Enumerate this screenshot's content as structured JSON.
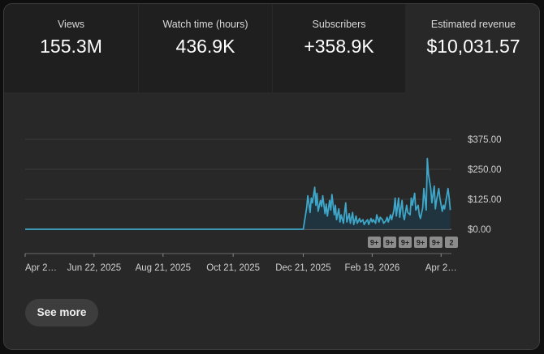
{
  "metrics": [
    {
      "label": "Views",
      "value": "155.3M"
    },
    {
      "label": "Watch time (hours)",
      "value": "436.9K"
    },
    {
      "label": "Subscribers",
      "value": "+358.9K"
    },
    {
      "label": "Estimated revenue",
      "value": "$10,031.57"
    }
  ],
  "selected_metric": "Estimated revenue",
  "see_more_label": "See more",
  "colors": {
    "line": "#3ea6c8",
    "fill": "#1e3540",
    "badge": "#8c8c8c",
    "selected_tab_bg": "#282828",
    "tab_bg": "#1f1f1f"
  },
  "chart_data": {
    "type": "area",
    "ylim": [
      0,
      375
    ],
    "y_tick_labels": [
      "$375.00",
      "$250.00",
      "$125.00",
      "$0.00"
    ],
    "y_tick_values": [
      375,
      250,
      125,
      0
    ],
    "x_tick_labels": [
      "Apr 2…",
      "Jun 22, 2025",
      "Aug 21, 2025",
      "Oct 21, 2025",
      "Dec 21, 2025",
      "Feb 19, 2026",
      "Apr 2…"
    ],
    "x_tick_dates": [
      "2025-04-23",
      "2025-06-22",
      "2025-08-21",
      "2025-10-21",
      "2025-12-21",
      "2026-02-19",
      "2026-04-20"
    ],
    "x_range": [
      "2025-04-23",
      "2026-04-29"
    ],
    "annotation_badges": [
      "9+",
      "9+",
      "9+",
      "9+",
      "9+",
      "2"
    ],
    "series": [
      {
        "x": [
          "2025-04-23",
          "2025-12-21",
          "2025-12-24",
          "2025-12-25",
          "2025-12-27",
          "2025-12-28",
          "2025-12-29",
          "2025-12-31",
          "2026-01-01",
          "2026-01-02",
          "2026-01-03",
          "2026-01-05",
          "2026-01-06",
          "2026-01-07",
          "2026-01-09",
          "2026-01-10",
          "2026-01-11",
          "2026-01-13",
          "2026-01-14",
          "2026-01-15",
          "2026-01-17",
          "2026-01-18",
          "2026-01-19",
          "2026-01-21",
          "2026-01-22",
          "2026-01-23",
          "2026-01-25",
          "2026-01-26",
          "2026-01-27",
          "2026-01-28",
          "2026-01-30",
          "2026-01-31",
          "2026-02-02",
          "2026-02-03",
          "2026-02-05",
          "2026-02-06",
          "2026-02-08",
          "2026-02-09",
          "2026-02-11",
          "2026-02-12",
          "2026-02-14",
          "2026-02-15",
          "2026-02-16",
          "2026-02-18",
          "2026-02-19",
          "2026-02-20",
          "2026-02-22",
          "2026-02-23",
          "2026-02-25",
          "2026-02-26",
          "2026-02-28",
          "2026-03-01",
          "2026-03-03",
          "2026-03-04",
          "2026-03-05",
          "2026-03-07",
          "2026-03-08",
          "2026-03-10",
          "2026-03-11",
          "2026-03-12",
          "2026-03-14",
          "2026-03-15",
          "2026-03-17",
          "2026-03-18",
          "2026-03-19",
          "2026-03-21",
          "2026-03-22",
          "2026-03-24",
          "2026-03-25",
          "2026-03-26",
          "2026-03-28",
          "2026-03-29",
          "2026-03-31",
          "2026-04-01",
          "2026-04-02",
          "2026-04-04",
          "2026-04-05",
          "2026-04-07",
          "2026-04-08",
          "2026-04-09",
          "2026-04-11",
          "2026-04-12",
          "2026-04-14",
          "2026-04-15",
          "2026-04-16",
          "2026-04-18",
          "2026-04-19",
          "2026-04-21",
          "2026-04-22",
          "2026-04-23",
          "2026-04-25",
          "2026-04-26",
          "2026-04-27",
          "2026-04-28"
        ],
        "y": [
          0,
          0,
          90,
          140,
          70,
          130,
          110,
          175,
          100,
          150,
          75,
          120,
          95,
          140,
          65,
          105,
          55,
          120,
          80,
          145,
          60,
          100,
          40,
          85,
          30,
          60,
          25,
          70,
          110,
          30,
          65,
          25,
          70,
          20,
          55,
          25,
          45,
          30,
          40,
          20,
          35,
          40,
          20,
          45,
          30,
          40,
          25,
          60,
          30,
          50,
          40,
          25,
          35,
          50,
          30,
          60,
          40,
          80,
          130,
          55,
          130,
          50,
          120,
          60,
          40,
          100,
          70,
          60,
          130,
          100,
          150,
          80,
          100,
          60,
          45,
          90,
          170,
          80,
          295,
          230,
          170,
          110,
          180,
          85,
          120,
          170,
          130,
          75,
          100,
          85,
          140,
          170,
          130,
          80
        ]
      }
    ]
  }
}
